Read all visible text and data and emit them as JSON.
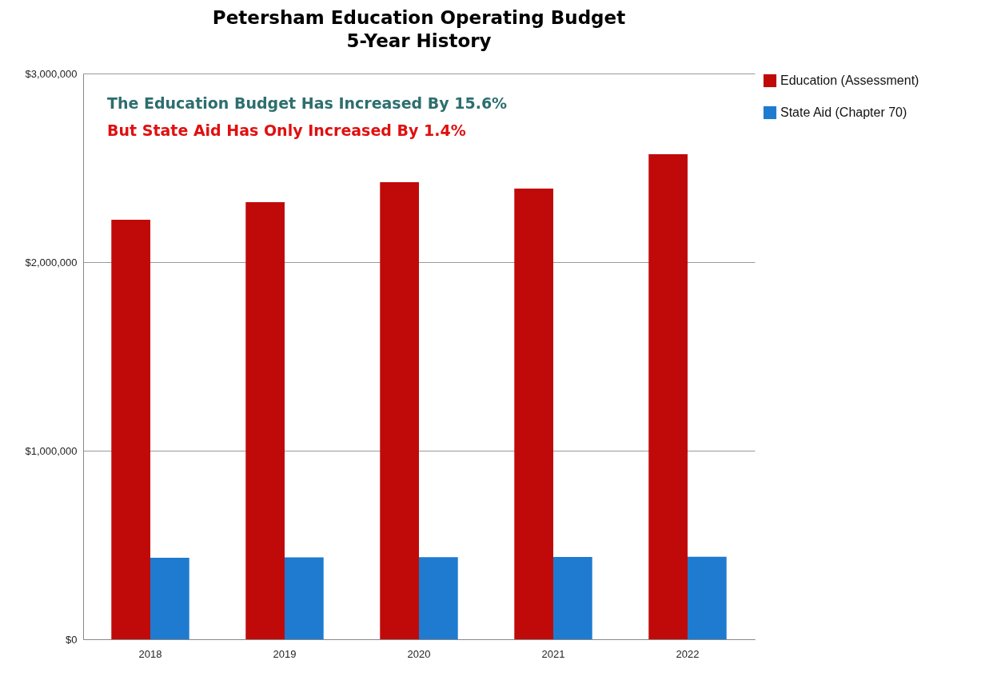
{
  "chart_data": {
    "type": "bar",
    "title": "Petersham Education Operating Budget",
    "subtitle": "5-Year History",
    "categories": [
      "2018",
      "2019",
      "2020",
      "2021",
      "2022"
    ],
    "series": [
      {
        "name": "Education (Assessment)",
        "color": "#c00a0a",
        "values": [
          2225000,
          2318000,
          2424000,
          2390000,
          2572000
        ]
      },
      {
        "name": "State Aid (Chapter 70)",
        "color": "#1f7bd0",
        "values": [
          432000,
          434000,
          435000,
          436000,
          438000
        ]
      }
    ],
    "ylim": [
      0,
      3000000
    ],
    "yticks": [
      {
        "value": 0,
        "label": "$0"
      },
      {
        "value": 1000000,
        "label": "$1,000,000"
      },
      {
        "value": 2000000,
        "label": "$2,000,000"
      },
      {
        "value": 3000000,
        "label": "$3,000,000"
      }
    ],
    "annotations": [
      "The Education Budget Has Increased By 15.6%",
      "But State Aid Has Only Increased By 1.4%"
    ],
    "grid": "y",
    "legend": "right"
  }
}
